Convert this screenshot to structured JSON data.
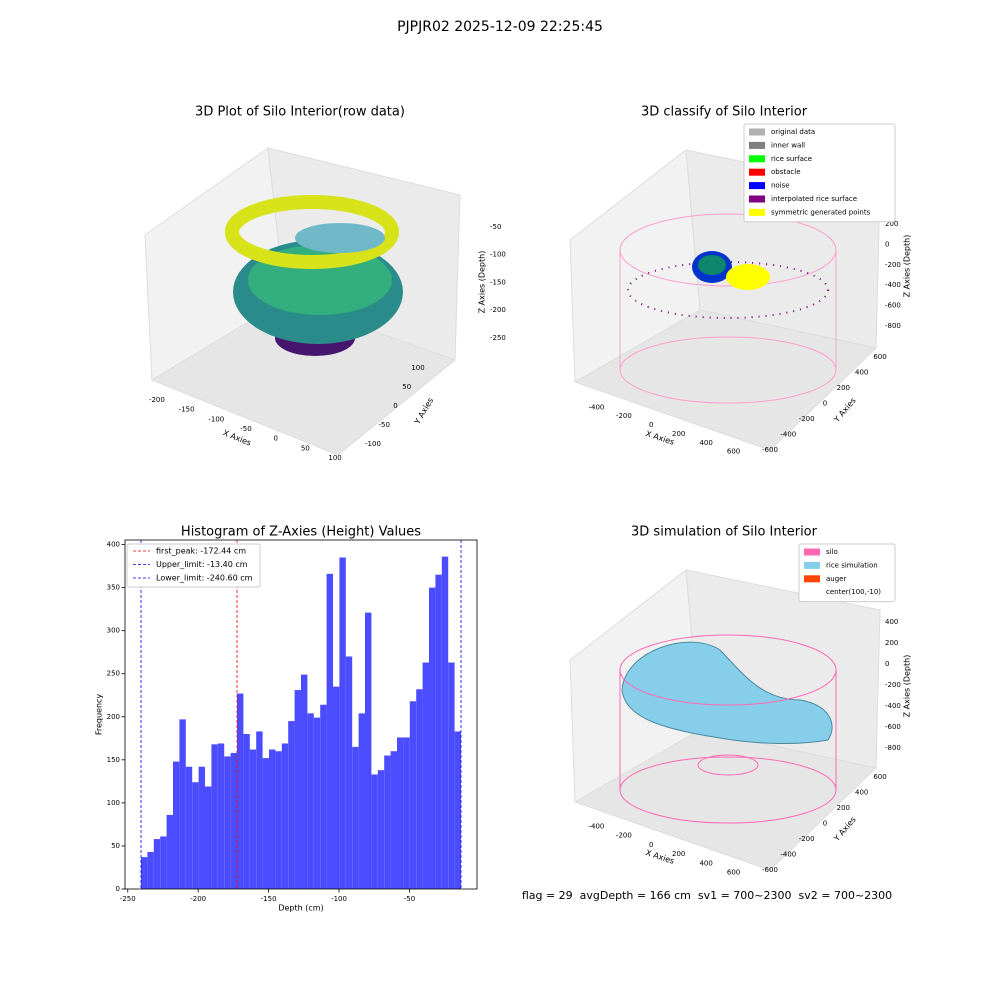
{
  "title": "PJPJR02 2025-12-09 22:25:45",
  "footer": "flag = 29  avgDepth = 166 cm  sv1 = 700~2300  sv2 = 700~2300",
  "chart_data": [
    {
      "type": "scatter3d",
      "title": "3D Plot of Silo Interior(row data)",
      "xlabel": "X Axies",
      "ylabel": "Y Axies",
      "zlabel": "Z Axies (Depth)",
      "xlim": [
        -215,
        110
      ],
      "xticks": [
        -200,
        -150,
        -100,
        -50,
        0,
        50,
        100
      ],
      "ylim": [
        -115,
        115
      ],
      "yticks": [
        -100,
        -50,
        0,
        50,
        100
      ],
      "zlim": [
        -260,
        -40
      ],
      "zticks": [
        -50,
        -100,
        -150,
        -200,
        -250
      ]
    },
    {
      "type": "scatter3d",
      "title": "3D classify of Silo Interior",
      "xlabel": "X Axies",
      "ylabel": "Y Axies",
      "zlabel": "Z Axies (Depth)",
      "xlim": [
        -520,
        720
      ],
      "xticks": [
        -400,
        -200,
        0,
        200,
        400,
        600
      ],
      "ylim": [
        -700,
        700
      ],
      "yticks": [
        -600,
        -400,
        -200,
        0,
        200,
        400,
        600
      ],
      "zlim": [
        -900,
        300
      ],
      "zticks": [
        200,
        0,
        -200,
        -400,
        -600,
        -800
      ],
      "legend": [
        {
          "name": "original data",
          "color": "#b0b0b0"
        },
        {
          "name": "inner wall",
          "color": "#808080"
        },
        {
          "name": "rice surface",
          "color": "#00ff00"
        },
        {
          "name": "obstacle",
          "color": "#ff0000"
        },
        {
          "name": "noise",
          "color": "#0000ff"
        },
        {
          "name": "interpolated rice surface",
          "color": "#800080"
        },
        {
          "name": "symmetric generated points",
          "color": "#ffff00"
        }
      ]
    },
    {
      "type": "histogram",
      "title": "Histogram of Z-Axies (Height) Values",
      "xlabel": "Depth (cm)",
      "ylabel": "Frequency",
      "color": "#4c4cff",
      "bins": [
        -240.6,
        -236.056,
        -231.512,
        -226.968,
        -222.424,
        -217.88,
        -213.336,
        -208.792,
        -204.248,
        -199.704,
        -195.16,
        -190.616,
        -186.072,
        -181.528,
        -176.984,
        -172.44,
        -167.896,
        -163.352,
        -158.808,
        -154.264,
        -149.72,
        -145.176,
        -140.632,
        -136.088,
        -131.544,
        -127.0,
        -122.456,
        -117.912,
        -113.368,
        -108.824,
        -104.28,
        -99.736,
        -95.192,
        -90.648,
        -86.104,
        -81.56,
        -77.016,
        -72.472,
        -67.928,
        -63.384,
        -58.84,
        -54.296,
        -49.752,
        -45.208,
        -40.664,
        -36.12,
        -31.576,
        -27.032,
        -22.488,
        -17.944,
        -13.4
      ],
      "values": [
        37,
        43,
        58,
        61,
        86,
        148,
        197,
        142,
        124,
        142,
        119,
        168,
        169,
        154,
        158,
        227,
        180,
        162,
        183,
        152,
        162,
        160,
        169,
        195,
        231,
        249,
        204,
        199,
        214,
        366,
        235,
        385,
        270,
        165,
        204,
        321,
        133,
        138,
        155,
        160,
        176,
        176,
        218,
        232,
        263,
        350,
        365,
        386,
        263,
        183
      ],
      "xlim": [
        -251.96,
        -2.04
      ],
      "xticks": [
        -250,
        -200,
        -150,
        -100,
        -50
      ],
      "ylim": [
        0,
        405.3
      ],
      "yticks": [
        0,
        50,
        100,
        150,
        200,
        250,
        300,
        350,
        400
      ],
      "vlines": [
        {
          "name": "first_peak: -172.44 cm",
          "value": -172.44,
          "color": "#ff0000"
        },
        {
          "name": "Upper_limit: -13.40 cm",
          "value": -13.4,
          "color": "#0000ff"
        },
        {
          "name": "Lower_limit: -240.60 cm",
          "value": -240.6,
          "color": "#0000ff"
        }
      ]
    },
    {
      "type": "surface3d",
      "title": "3D simulation of Silo Interior",
      "xlabel": "X Axies",
      "ylabel": "Y Axies",
      "zlabel": "Z Axies (Depth)",
      "xlim": [
        -520,
        720
      ],
      "xticks": [
        -400,
        -200,
        0,
        200,
        400,
        600
      ],
      "ylim": [
        -700,
        700
      ],
      "yticks": [
        -600,
        -400,
        -200,
        0,
        200,
        400,
        600
      ],
      "zlim": [
        -900,
        500
      ],
      "zticks": [
        400,
        200,
        0,
        -200,
        -400,
        -600,
        -800
      ],
      "legend": [
        {
          "name": "silo",
          "color": "#ff69b4"
        },
        {
          "name": "rice simulation",
          "color": "#87ceeb"
        },
        {
          "name": "auger",
          "color": "#ff4500"
        },
        {
          "name": "center(100,-10)"
        }
      ]
    }
  ]
}
